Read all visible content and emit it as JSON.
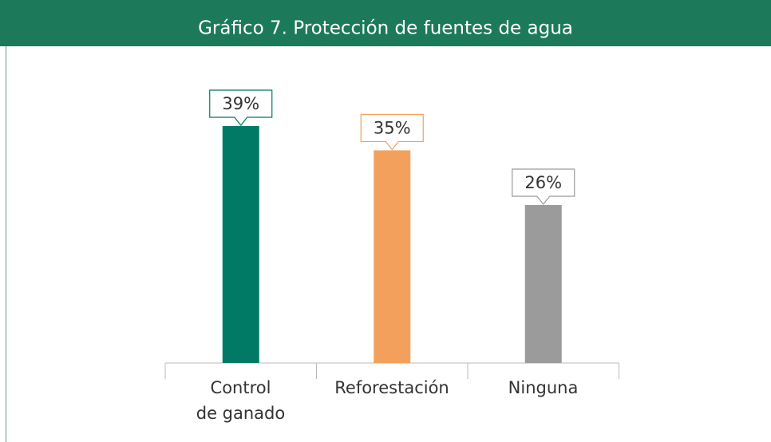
{
  "chart_data": {
    "type": "bar",
    "title": "Gráfico 7. Protección de fuentes de agua",
    "categories": [
      "Control\nde ganado",
      "Reforestación",
      "Ninguna"
    ],
    "values": [
      39,
      35,
      26
    ],
    "value_labels": [
      "39%",
      "35%",
      "26%"
    ],
    "colors": [
      "#007a64",
      "#f3a05c",
      "#9b9b9b"
    ]
  }
}
